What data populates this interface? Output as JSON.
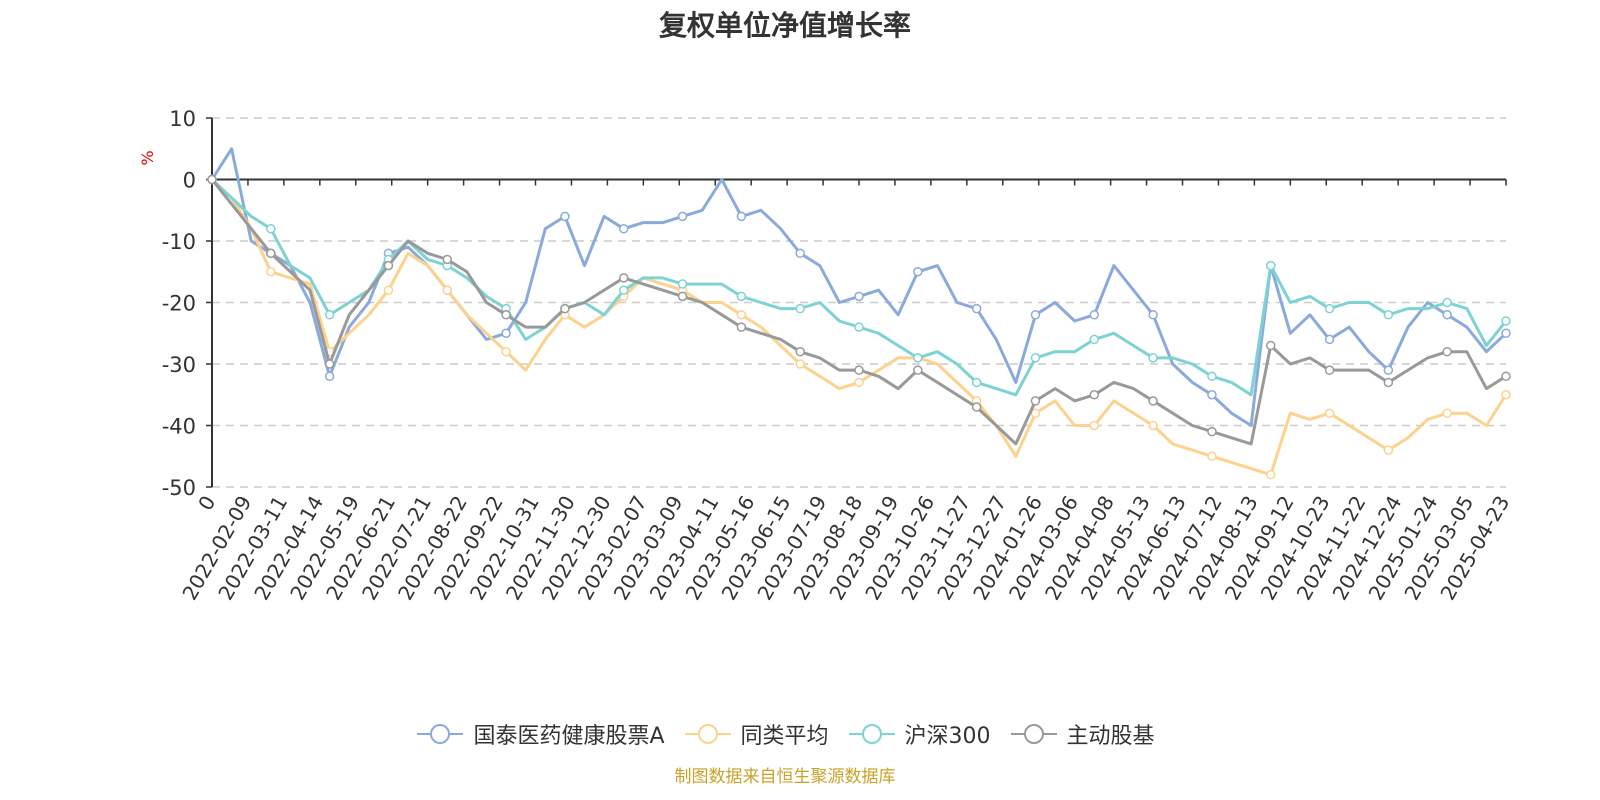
{
  "chart_data": {
    "type": "line",
    "title": "复权单位净值增长率",
    "ylabel": "%",
    "ylim": [
      -50,
      10
    ],
    "yticks": [
      10,
      0,
      -10,
      -20,
      -30,
      -40,
      -50
    ],
    "x_tick_labels": [
      "0",
      "2022-02-09",
      "2022-03-11",
      "2022-04-14",
      "2022-05-19",
      "2022-06-21",
      "2022-07-21",
      "2022-08-22",
      "2022-09-22",
      "2022-10-31",
      "2022-11-30",
      "2022-12-30",
      "2023-02-07",
      "2023-03-09",
      "2023-04-11",
      "2023-05-16",
      "2023-06-15",
      "2023-07-19",
      "2023-08-18",
      "2023-09-19",
      "2023-10-26",
      "2023-11-27",
      "2023-12-27",
      "2024-01-26",
      "2024-03-06",
      "2024-04-08",
      "2024-05-13",
      "2024-06-13",
      "2024-07-12",
      "2024-08-13",
      "2024-09-12",
      "2024-10-23",
      "2024-11-22",
      "2024-12-24",
      "2025-01-24",
      "2025-03-05",
      "2025-04-23"
    ],
    "grid": "dashed-horizontal",
    "legend_position": "bottom",
    "source_note": "制图数据来自恒生聚源数据库",
    "colors": {
      "series1": "#8aaadc",
      "series2": "#fdd28d",
      "series3": "#7dd3d3",
      "series4": "#999999",
      "source_note": "#c9a227",
      "ylabel": "#e00000"
    },
    "series": [
      {
        "name": "国泰医药健康股票A",
        "color": "#8aaadc",
        "values": [
          0,
          5,
          -10,
          -12,
          -14,
          -20,
          -32,
          -24,
          -20,
          -12,
          -11,
          -14,
          -18,
          -22,
          -26,
          -25,
          -20,
          -8,
          -6,
          -14,
          -6,
          -8,
          -7,
          -7,
          -6,
          -5,
          0,
          -6,
          -5,
          -8,
          -12,
          -14,
          -20,
          -19,
          -18,
          -22,
          -15,
          -14,
          -20,
          -21,
          -26,
          -33,
          -22,
          -20,
          -23,
          -22,
          -14,
          -18,
          -22,
          -30,
          -33,
          -35,
          -38,
          -40,
          -14,
          -25,
          -22,
          -26,
          -24,
          -28,
          -31,
          -24,
          -20,
          -22,
          -24,
          -28,
          -25
        ]
      },
      {
        "name": "同类平均",
        "color": "#fdd28d",
        "values": [
          0,
          -3,
          -8,
          -15,
          -16,
          -17,
          -28,
          -25,
          -22,
          -18,
          -12,
          -14,
          -18,
          -22,
          -25,
          -28,
          -31,
          -26,
          -22,
          -24,
          -22,
          -19,
          -16,
          -17,
          -18,
          -20,
          -20,
          -22,
          -24,
          -27,
          -30,
          -32,
          -34,
          -33,
          -31,
          -29,
          -29,
          -30,
          -33,
          -36,
          -40,
          -45,
          -38,
          -36,
          -40,
          -40,
          -36,
          -38,
          -40,
          -43,
          -44,
          -45,
          -46,
          -47,
          -48,
          -38,
          -39,
          -38,
          -40,
          -42,
          -44,
          -42,
          -39,
          -38,
          -38,
          -40,
          -35
        ]
      },
      {
        "name": "沪深300",
        "color": "#7dd3d3",
        "values": [
          0,
          -3,
          -6,
          -8,
          -14,
          -16,
          -22,
          -20,
          -18,
          -13,
          -10,
          -13,
          -14,
          -16,
          -19,
          -21,
          -26,
          -24,
          -21,
          -20,
          -22,
          -18,
          -16,
          -16,
          -17,
          -17,
          -17,
          -19,
          -20,
          -21,
          -21,
          -20,
          -23,
          -24,
          -25,
          -27,
          -29,
          -28,
          -30,
          -33,
          -34,
          -35,
          -29,
          -28,
          -28,
          -26,
          -25,
          -27,
          -29,
          -29,
          -30,
          -32,
          -33,
          -35,
          -14,
          -20,
          -19,
          -21,
          -20,
          -20,
          -22,
          -21,
          -21,
          -20,
          -21,
          -27,
          -23
        ]
      },
      {
        "name": "主动股基",
        "color": "#999999",
        "values": [
          0,
          -4,
          -8,
          -12,
          -15,
          -18,
          -30,
          -22,
          -18,
          -14,
          -10,
          -12,
          -13,
          -15,
          -20,
          -22,
          -24,
          -24,
          -21,
          -20,
          -18,
          -16,
          -17,
          -18,
          -19,
          -20,
          -22,
          -24,
          -25,
          -26,
          -28,
          -29,
          -31,
          -31,
          -32,
          -34,
          -31,
          -33,
          -35,
          -37,
          -40,
          -43,
          -36,
          -34,
          -36,
          -35,
          -33,
          -34,
          -36,
          -38,
          -40,
          -41,
          -42,
          -43,
          -27,
          -30,
          -29,
          -31,
          -31,
          -31,
          -33,
          -31,
          -29,
          -28,
          -28,
          -34,
          -32
        ]
      }
    ]
  }
}
